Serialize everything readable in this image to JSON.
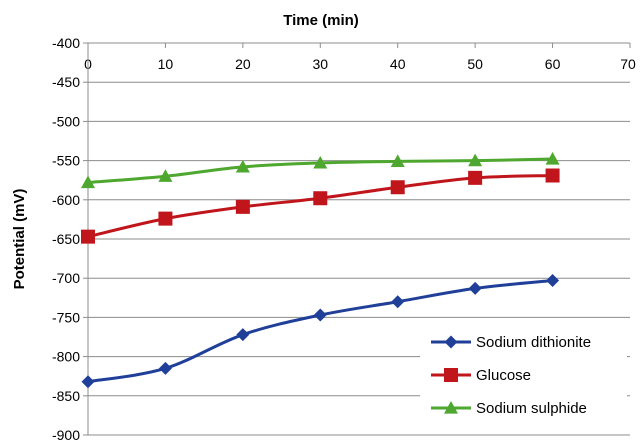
{
  "chart_data": {
    "type": "line",
    "title": "",
    "xlabel": "Time (min)",
    "ylabel": "Potential (mV)",
    "xlim": [
      0,
      70
    ],
    "ylim": [
      -900,
      -400
    ],
    "x_ticks": [
      0,
      10,
      20,
      30,
      40,
      50,
      60,
      70
    ],
    "y_ticks": [
      -400,
      -450,
      -500,
      -550,
      -600,
      -650,
      -700,
      -750,
      -800,
      -850,
      -900
    ],
    "x_axis_position": "top",
    "grid": "horizontal",
    "legend_position": "bottom-right",
    "series": [
      {
        "name": "Sodium dithionite",
        "color": "#1f3f99",
        "marker": "diamond",
        "x": [
          0,
          10,
          20,
          30,
          40,
          50,
          60
        ],
        "y": [
          -832,
          -815,
          -772,
          -747,
          -730,
          -713,
          -703
        ]
      },
      {
        "name": "Glucose",
        "color": "#c0151b",
        "marker": "square",
        "x": [
          0,
          10,
          20,
          30,
          40,
          50,
          60
        ],
        "y": [
          -647,
          -624,
          -609,
          -598,
          -584,
          -572,
          -569
        ]
      },
      {
        "name": "Sodium sulphide",
        "color": "#4ea72e",
        "marker": "triangle",
        "x": [
          0,
          10,
          20,
          30,
          40,
          50,
          60
        ],
        "y": [
          -578,
          -570,
          -558,
          -553,
          -551,
          -550,
          -548
        ]
      }
    ]
  }
}
